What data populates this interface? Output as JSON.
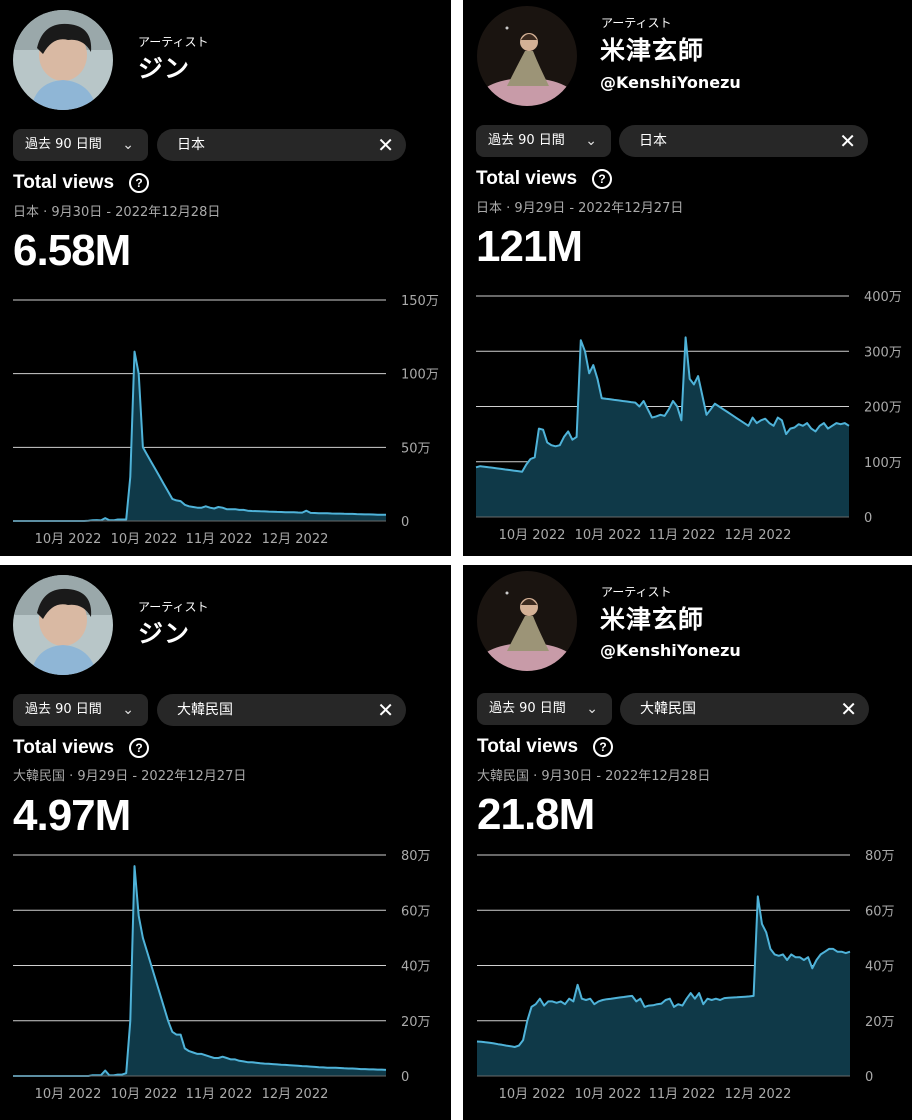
{
  "chart_data": [
    {
      "type": "area",
      "artist": {
        "role": "アーティスト",
        "name": "ジン"
      },
      "period": "過去 90 日間",
      "country": "日本",
      "title": "Total views",
      "subtitle": "日本 · 9月30日 - 2022年12月28日",
      "total": "6.58M",
      "y_ticks": [
        "0",
        "50万",
        "100万",
        "150万"
      ],
      "ylim": [
        0,
        150
      ],
      "y_unit": "万",
      "x_ticks": [
        "10月 2022",
        "10月 2022",
        "11月 2022",
        "12月 2022"
      ],
      "values": [
        0,
        0,
        0,
        0,
        0,
        0,
        0,
        0,
        0,
        0,
        0,
        0,
        0,
        0,
        0,
        0,
        0,
        0,
        0.2,
        0.5,
        0.6,
        0.4,
        2,
        0.5,
        0.5,
        1,
        1,
        1,
        30,
        115,
        100,
        50,
        45,
        40,
        35,
        30,
        25,
        20,
        15,
        14,
        13.5,
        11,
        10,
        9.5,
        9,
        9,
        10,
        9,
        8.5,
        9.5,
        9,
        8,
        8,
        8,
        7.5,
        7.5,
        7,
        6.8,
        6.7,
        6.6,
        6.5,
        6.4,
        6.3,
        6.2,
        6.1,
        6,
        6,
        5.9,
        5.8,
        5.7,
        7,
        5.5,
        5.4,
        5.3,
        5.3,
        5.2,
        5.1,
        5,
        5,
        4.9,
        4.8,
        4.8,
        4.7,
        4.6,
        4.5,
        4.5,
        4.4,
        4.3,
        4.3,
        4.2
      ]
    },
    {
      "type": "area",
      "artist": {
        "role": "アーティスト",
        "name": "米津玄師",
        "handle": "@KenshiYonezu"
      },
      "period": "過去 90 日間",
      "country": "日本",
      "title": "Total views",
      "subtitle": "日本 · 9月29日 - 2022年12月27日",
      "total": "121M",
      "y_ticks": [
        "0",
        "100万",
        "200万",
        "300万",
        "400万"
      ],
      "ylim": [
        0,
        400
      ],
      "y_unit": "万",
      "x_ticks": [
        "10月 2022",
        "10月 2022",
        "11月 2022",
        "12月 2022"
      ],
      "values": [
        90,
        92,
        91,
        90,
        89,
        88,
        87,
        86,
        85,
        84,
        83,
        82,
        95,
        105,
        108,
        160,
        158,
        135,
        130,
        128,
        130,
        145,
        155,
        140,
        145,
        320,
        300,
        260,
        275,
        250,
        215,
        214,
        213,
        212,
        211,
        210,
        209,
        208,
        207,
        200,
        210,
        195,
        180,
        182,
        185,
        183,
        195,
        210,
        200,
        175,
        325,
        250,
        240,
        255,
        220,
        185,
        195,
        205,
        200,
        195,
        190,
        185,
        180,
        175,
        170,
        165,
        180,
        170,
        175,
        178,
        170,
        165,
        180,
        175,
        150,
        160,
        162,
        168,
        165,
        170,
        160,
        155,
        165,
        170,
        160,
        165,
        170,
        168,
        170,
        165
      ]
    },
    {
      "type": "area",
      "artist": {
        "role": "アーティスト",
        "name": "ジン"
      },
      "period": "過去 90 日間",
      "country": "大韓民国",
      "title": "Total views",
      "subtitle": "大韓民国 · 9月29日 - 2022年12月27日",
      "total": "4.97M",
      "y_ticks": [
        "0",
        "20万",
        "40万",
        "60万",
        "80万"
      ],
      "ylim": [
        0,
        80
      ],
      "y_unit": "万",
      "x_ticks": [
        "10月 2022",
        "10月 2022",
        "11月 2022",
        "12月 2022"
      ],
      "values": [
        0,
        0,
        0,
        0,
        0,
        0,
        0,
        0,
        0,
        0,
        0,
        0,
        0,
        0,
        0,
        0,
        0,
        0,
        0,
        0.3,
        0.3,
        0.3,
        2,
        0.2,
        0.2,
        0.5,
        0.5,
        1,
        20,
        76,
        58,
        50,
        45,
        40,
        35,
        30,
        25,
        20,
        16,
        15,
        15,
        10,
        9,
        8.5,
        8,
        8,
        7.5,
        7,
        6.5,
        6.5,
        7,
        6.5,
        6,
        6,
        5.5,
        5.3,
        5,
        5,
        4.8,
        4.6,
        4.5,
        4.4,
        4.3,
        4.2,
        4.1,
        4,
        3.9,
        3.8,
        3.7,
        3.6,
        3.5,
        3.4,
        3.3,
        3.2,
        3.1,
        3,
        3,
        3,
        2.9,
        2.8,
        2.7,
        2.7,
        2.6,
        2.5,
        2.5,
        2.4,
        2.4,
        2.3,
        2.3,
        2.2
      ]
    },
    {
      "type": "area",
      "artist": {
        "role": "アーティスト",
        "name": "米津玄師",
        "handle": "@KenshiYonezu"
      },
      "period": "過去 90 日間",
      "country": "大韓民国",
      "title": "Total views",
      "subtitle": "大韓民国 · 9月30日 - 2022年12月28日",
      "total": "21.8M",
      "y_ticks": [
        "0",
        "20万",
        "40万",
        "60万",
        "80万"
      ],
      "ylim": [
        0,
        80
      ],
      "y_unit": "万",
      "x_ticks": [
        "10月 2022",
        "10月 2022",
        "11月 2022",
        "12月 2022"
      ],
      "values": [
        12.5,
        12.4,
        12.2,
        12,
        11.8,
        11.5,
        11.3,
        11,
        10.8,
        10.5,
        11,
        13,
        20,
        25,
        26,
        28,
        25.5,
        27,
        27,
        26.5,
        27,
        26,
        28,
        27,
        33,
        28,
        27.5,
        28,
        26,
        27,
        27.5,
        27.8,
        28,
        28.2,
        28.4,
        28.6,
        28.8,
        29,
        27,
        28,
        25,
        25.5,
        25.6,
        26,
        26.2,
        27.5,
        28,
        25,
        26,
        25.5,
        28,
        30,
        28,
        30,
        26,
        28,
        27.5,
        28,
        27.5,
        28.2,
        28.3,
        28.4,
        28.5,
        28.6,
        28.7,
        28.8,
        29,
        65,
        55,
        52,
        46,
        44,
        43.5,
        44,
        42,
        44,
        43,
        43,
        42,
        43,
        39,
        42,
        44,
        45,
        46,
        46,
        45,
        45,
        44.5,
        45
      ]
    }
  ]
}
